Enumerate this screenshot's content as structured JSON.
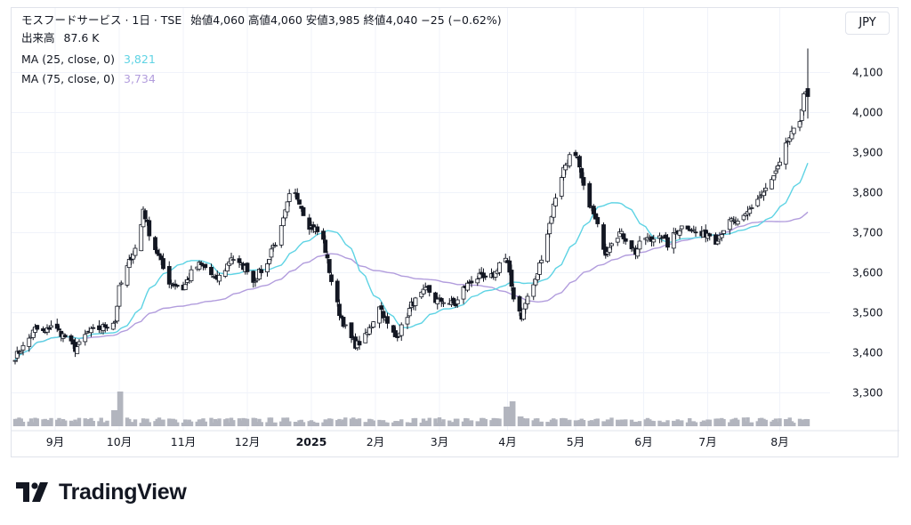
{
  "header": {
    "symbol": "モスフードサービス · 1日 · TSE",
    "ohlc_text": "始値4,060  高値4,060  安値3,985  終値4,040  −25 (−0.62%)",
    "volume_label": "出来高",
    "volume_value": "87.6 K",
    "ma25_label": "MA (25, close, 0)",
    "ma25_value": "3,821",
    "ma75_label": "MA (75, close, 0)",
    "ma75_value": "3,734"
  },
  "currency": "JPY",
  "brand": "TradingView",
  "colors": {
    "ma25": "#5ed3e4",
    "ma75": "#b29ddd",
    "candle": "#131722",
    "volume": "#b2b5be",
    "grid": "#f0f3fa"
  },
  "chart_data": {
    "type": "candlestick",
    "y_ticks": [
      "4,100",
      "4,000",
      "3,900",
      "3,800",
      "3,700",
      "3,600",
      "3,500",
      "3,400",
      "3,300"
    ],
    "y_tick_values": [
      4100,
      4000,
      3900,
      3800,
      3700,
      3600,
      3500,
      3400,
      3300
    ],
    "x_ticks": [
      "9月",
      "10月",
      "11月",
      "12月",
      "2025",
      "2月",
      "3月",
      "4月",
      "5月",
      "6月",
      "7月",
      "8月"
    ],
    "x_tick_days": [
      20,
      52,
      84,
      116,
      148,
      180,
      212,
      246,
      280,
      314,
      346,
      382
    ],
    "last_day": 396,
    "ylim": [
      3250,
      4200
    ],
    "close_anchors": [
      [
        0,
        3390
      ],
      [
        5,
        3420
      ],
      [
        10,
        3460
      ],
      [
        15,
        3450
      ],
      [
        18,
        3470
      ],
      [
        25,
        3440
      ],
      [
        30,
        3410
      ],
      [
        32,
        3420
      ],
      [
        36,
        3450
      ],
      [
        42,
        3460
      ],
      [
        46,
        3470
      ],
      [
        50,
        3480
      ],
      [
        52,
        3560
      ],
      [
        55,
        3600
      ],
      [
        58,
        3640
      ],
      [
        62,
        3680
      ],
      [
        64,
        3760
      ],
      [
        67,
        3700
      ],
      [
        70,
        3660
      ],
      [
        72,
        3640
      ],
      [
        76,
        3580
      ],
      [
        80,
        3570
      ],
      [
        84,
        3560
      ],
      [
        88,
        3600
      ],
      [
        92,
        3620
      ],
      [
        96,
        3610
      ],
      [
        100,
        3580
      ],
      [
        104,
        3600
      ],
      [
        108,
        3640
      ],
      [
        112,
        3620
      ],
      [
        116,
        3610
      ],
      [
        118,
        3570
      ],
      [
        122,
        3600
      ],
      [
        126,
        3620
      ],
      [
        128,
        3660
      ],
      [
        132,
        3690
      ],
      [
        134,
        3730
      ],
      [
        138,
        3810
      ],
      [
        142,
        3780
      ],
      [
        146,
        3720
      ],
      [
        150,
        3710
      ],
      [
        154,
        3680
      ],
      [
        158,
        3580
      ],
      [
        162,
        3500
      ],
      [
        166,
        3450
      ],
      [
        170,
        3420
      ],
      [
        174,
        3430
      ],
      [
        178,
        3470
      ],
      [
        182,
        3520
      ],
      [
        186,
        3470
      ],
      [
        190,
        3440
      ],
      [
        194,
        3470
      ],
      [
        198,
        3520
      ],
      [
        202,
        3540
      ],
      [
        206,
        3560
      ],
      [
        210,
        3530
      ],
      [
        214,
        3530
      ],
      [
        220,
        3520
      ],
      [
        224,
        3560
      ],
      [
        228,
        3580
      ],
      [
        232,
        3590
      ],
      [
        236,
        3580
      ],
      [
        240,
        3600
      ],
      [
        244,
        3650
      ],
      [
        246,
        3620
      ],
      [
        249,
        3540
      ],
      [
        251,
        3520
      ],
      [
        253,
        3490
      ],
      [
        256,
        3540
      ],
      [
        260,
        3580
      ],
      [
        263,
        3640
      ],
      [
        266,
        3700
      ],
      [
        270,
        3790
      ],
      [
        274,
        3860
      ],
      [
        278,
        3900
      ],
      [
        281,
        3880
      ],
      [
        284,
        3810
      ],
      [
        288,
        3760
      ],
      [
        292,
        3700
      ],
      [
        295,
        3650
      ],
      [
        298,
        3680
      ],
      [
        302,
        3700
      ],
      [
        306,
        3680
      ],
      [
        310,
        3650
      ],
      [
        314,
        3690
      ],
      [
        318,
        3680
      ],
      [
        322,
        3700
      ],
      [
        326,
        3670
      ],
      [
        330,
        3700
      ],
      [
        334,
        3720
      ],
      [
        338,
        3710
      ],
      [
        342,
        3690
      ],
      [
        346,
        3700
      ],
      [
        350,
        3680
      ],
      [
        354,
        3710
      ],
      [
        358,
        3730
      ],
      [
        362,
        3720
      ],
      [
        366,
        3750
      ],
      [
        370,
        3780
      ],
      [
        374,
        3800
      ],
      [
        378,
        3830
      ],
      [
        382,
        3870
      ],
      [
        386,
        3930
      ],
      [
        390,
        3960
      ],
      [
        392,
        3980
      ],
      [
        394,
        4050
      ],
      [
        396,
        4040
      ]
    ],
    "last_candle": {
      "open": 4060,
      "high": 4060,
      "low": 3985,
      "close": 4040
    },
    "volume_spikes": [
      [
        40,
        1.2
      ],
      [
        50,
        3.6
      ],
      [
        52,
        7.8
      ],
      [
        246,
        4.4
      ],
      [
        248,
        5.6
      ],
      [
        252,
        2.2
      ]
    ]
  }
}
